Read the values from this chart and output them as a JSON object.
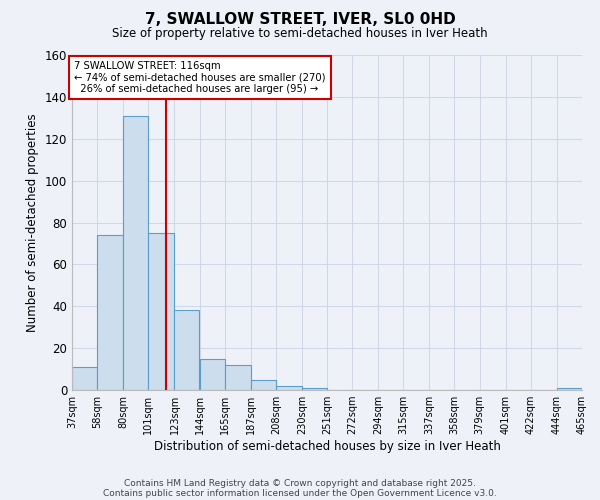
{
  "title": "7, SWALLOW STREET, IVER, SL0 0HD",
  "subtitle": "Size of property relative to semi-detached houses in Iver Heath",
  "xlabel": "Distribution of semi-detached houses by size in Iver Heath",
  "ylabel": "Number of semi-detached properties",
  "footnote1": "Contains HM Land Registry data © Crown copyright and database right 2025.",
  "footnote2": "Contains public sector information licensed under the Open Government Licence v3.0.",
  "bin_edges": [
    37,
    58,
    80,
    101,
    123,
    144,
    165,
    187,
    208,
    230,
    251,
    272,
    294,
    315,
    337,
    358,
    379,
    401,
    422,
    444,
    465
  ],
  "bin_labels": [
    "37sqm",
    "58sqm",
    "80sqm",
    "101sqm",
    "123sqm",
    "144sqm",
    "165sqm",
    "187sqm",
    "208sqm",
    "230sqm",
    "251sqm",
    "272sqm",
    "294sqm",
    "315sqm",
    "337sqm",
    "358sqm",
    "379sqm",
    "401sqm",
    "422sqm",
    "444sqm",
    "465sqm"
  ],
  "counts": [
    11,
    74,
    131,
    75,
    38,
    15,
    12,
    5,
    2,
    1,
    0,
    0,
    0,
    0,
    0,
    0,
    0,
    0,
    0,
    1
  ],
  "bar_color": "#ccdded",
  "bar_edge_color": "#5a9ec9",
  "property_value": 116,
  "vline_color": "#cc0000",
  "annotation_text": "7 SWALLOW STREET: 116sqm\n← 74% of semi-detached houses are smaller (270)\n  26% of semi-detached houses are larger (95) →",
  "annotation_box_color": "#ffffff",
  "annotation_box_edge": "#cc0000",
  "ylim": [
    0,
    160
  ],
  "yticks": [
    0,
    20,
    40,
    60,
    80,
    100,
    120,
    140,
    160
  ],
  "grid_color": "#d0d8e8",
  "background_color": "#eef2f8"
}
